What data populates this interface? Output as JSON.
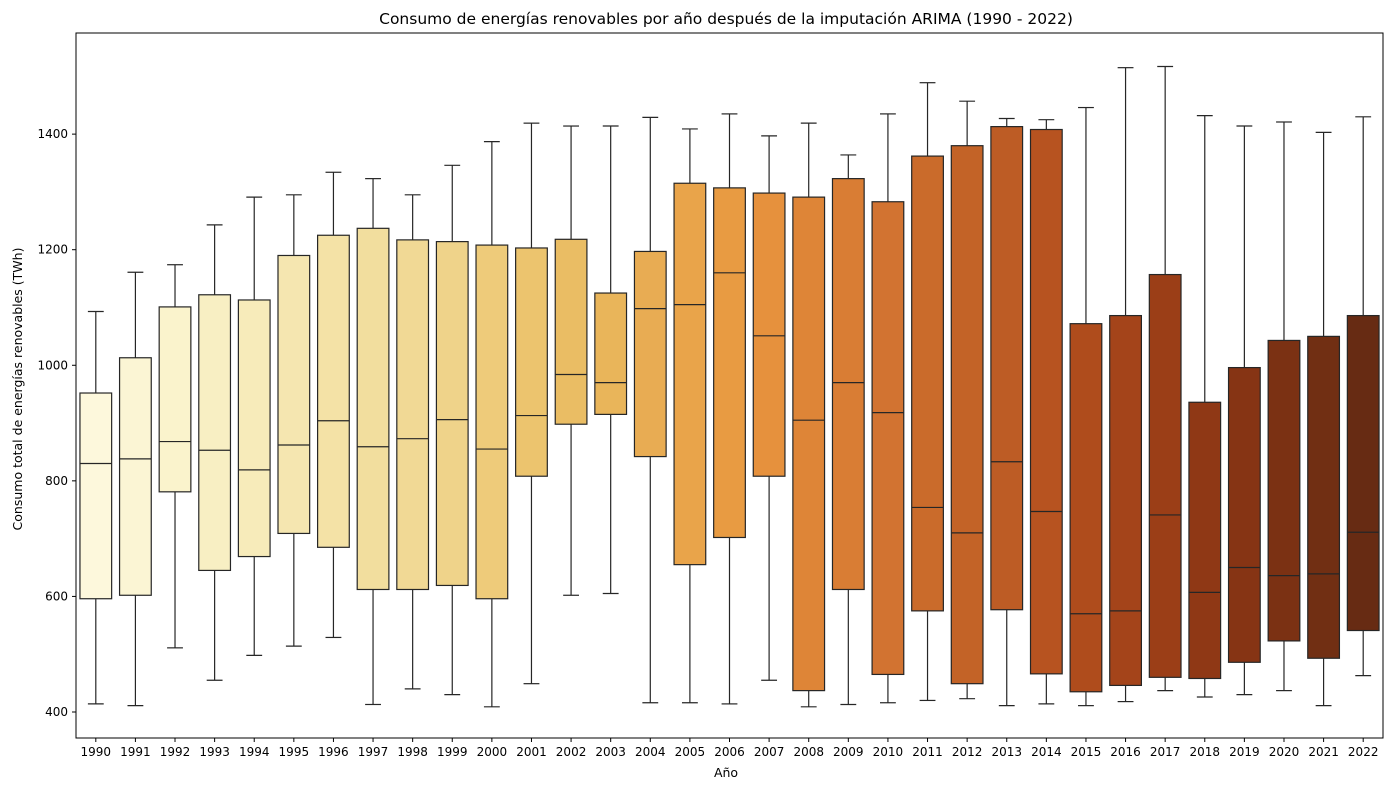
{
  "chart_data": {
    "type": "box",
    "title": "Consumo de energías renovables por año después de la imputación ARIMA (1990 - 2022)",
    "xlabel": "Año",
    "ylabel": "Consumo total de energías renovables (TWh)",
    "ylim": [
      355,
      1575
    ],
    "y_ticks": [
      400,
      600,
      800,
      1000,
      1200,
      1400
    ],
    "grid": false,
    "legend": "none",
    "box_edge_color": "#262626",
    "categories": [
      "1990",
      "1991",
      "1992",
      "1993",
      "1994",
      "1995",
      "1996",
      "1997",
      "1998",
      "1999",
      "2000",
      "2001",
      "2002",
      "2003",
      "2004",
      "2005",
      "2006",
      "2007",
      "2008",
      "2009",
      "2010",
      "2011",
      "2012",
      "2013",
      "2014",
      "2015",
      "2016",
      "2017",
      "2018",
      "2019",
      "2020",
      "2021",
      "2022"
    ],
    "boxes": [
      {
        "year": "1990",
        "min": 414,
        "q1": 596,
        "median": 830,
        "q3": 952,
        "max": 1093,
        "color": "#fdf8dc"
      },
      {
        "year": "1991",
        "min": 411,
        "q1": 602,
        "median": 838,
        "q3": 1013,
        "max": 1161,
        "color": "#fbf5d4"
      },
      {
        "year": "1992",
        "min": 511,
        "q1": 781,
        "median": 868,
        "q3": 1101,
        "max": 1174,
        "color": "#faf3cc"
      },
      {
        "year": "1993",
        "min": 455,
        "q1": 645,
        "median": 853,
        "q3": 1122,
        "max": 1243,
        "color": "#f8efc3"
      },
      {
        "year": "1994",
        "min": 498,
        "q1": 669,
        "median": 819,
        "q3": 1113,
        "max": 1291,
        "color": "#f7ebba"
      },
      {
        "year": "1995",
        "min": 514,
        "q1": 709,
        "median": 862,
        "q3": 1190,
        "max": 1295,
        "color": "#f5e6b0"
      },
      {
        "year": "1996",
        "min": 529,
        "q1": 685,
        "median": 904,
        "q3": 1225,
        "max": 1334,
        "color": "#f4e2a6"
      },
      {
        "year": "1997",
        "min": 413,
        "q1": 612,
        "median": 859,
        "q3": 1237,
        "max": 1323,
        "color": "#f2de9e"
      },
      {
        "year": "1998",
        "min": 440,
        "q1": 612,
        "median": 873,
        "q3": 1217,
        "max": 1295,
        "color": "#f1d995"
      },
      {
        "year": "1999",
        "min": 430,
        "q1": 619,
        "median": 906,
        "q3": 1214,
        "max": 1346,
        "color": "#efd38a"
      },
      {
        "year": "2000",
        "min": 409,
        "q1": 596,
        "median": 855,
        "q3": 1208,
        "max": 1387,
        "color": "#eecb7a"
      },
      {
        "year": "2001",
        "min": 449,
        "q1": 808,
        "median": 913,
        "q3": 1203,
        "max": 1419,
        "color": "#ecc46e"
      },
      {
        "year": "2002",
        "min": 602,
        "q1": 898,
        "median": 984,
        "q3": 1218,
        "max": 1414,
        "color": "#eabd64"
      },
      {
        "year": "2003",
        "min": 605,
        "q1": 915,
        "median": 970,
        "q3": 1125,
        "max": 1414,
        "color": "#e9b55a"
      },
      {
        "year": "2004",
        "min": 416,
        "q1": 842,
        "median": 1098,
        "q3": 1197,
        "max": 1429,
        "color": "#e8ac53"
      },
      {
        "year": "2005",
        "min": 416,
        "q1": 655,
        "median": 1105,
        "q3": 1315,
        "max": 1409,
        "color": "#e9a44a"
      },
      {
        "year": "2006",
        "min": 414,
        "q1": 702,
        "median": 1160,
        "q3": 1307,
        "max": 1435,
        "color": "#e89b42"
      },
      {
        "year": "2007",
        "min": 455,
        "q1": 808,
        "median": 1051,
        "q3": 1298,
        "max": 1397,
        "color": "#e6913d"
      },
      {
        "year": "2008",
        "min": 409,
        "q1": 437,
        "median": 905,
        "q3": 1291,
        "max": 1419,
        "color": "#de8537"
      },
      {
        "year": "2009",
        "min": 413,
        "q1": 612,
        "median": 970,
        "q3": 1323,
        "max": 1364,
        "color": "#d97d34"
      },
      {
        "year": "2010",
        "min": 416,
        "q1": 465,
        "median": 918,
        "q3": 1283,
        "max": 1435,
        "color": "#d27331"
      },
      {
        "year": "2011",
        "min": 420,
        "q1": 575,
        "median": 754,
        "q3": 1362,
        "max": 1489,
        "color": "#ca6b2b"
      },
      {
        "year": "2012",
        "min": 423,
        "q1": 449,
        "median": 710,
        "q3": 1380,
        "max": 1457,
        "color": "#c36327"
      },
      {
        "year": "2013",
        "min": 411,
        "q1": 577,
        "median": 833,
        "q3": 1413,
        "max": 1427,
        "color": "#bd5c25"
      },
      {
        "year": "2014",
        "min": 414,
        "q1": 466,
        "median": 747,
        "q3": 1408,
        "max": 1425,
        "color": "#b75320"
      },
      {
        "year": "2015",
        "min": 411,
        "q1": 435,
        "median": 570,
        "q3": 1072,
        "max": 1446,
        "color": "#af4c1c"
      },
      {
        "year": "2016",
        "min": 418,
        "q1": 446,
        "median": 575,
        "q3": 1086,
        "max": 1515,
        "color": "#a4441a"
      },
      {
        "year": "2017",
        "min": 437,
        "q1": 460,
        "median": 741,
        "q3": 1157,
        "max": 1517,
        "color": "#9b3e17"
      },
      {
        "year": "2018",
        "min": 426,
        "q1": 458,
        "median": 607,
        "q3": 936,
        "max": 1432,
        "color": "#8f3815"
      },
      {
        "year": "2019",
        "min": 430,
        "q1": 486,
        "median": 650,
        "q3": 996,
        "max": 1414,
        "color": "#863414"
      },
      {
        "year": "2020",
        "min": 437,
        "q1": 523,
        "median": 636,
        "q3": 1043,
        "max": 1421,
        "color": "#7b3113"
      },
      {
        "year": "2021",
        "min": 411,
        "q1": 493,
        "median": 639,
        "q3": 1050,
        "max": 1403,
        "color": "#712f13"
      },
      {
        "year": "2022",
        "min": 463,
        "q1": 541,
        "median": 711,
        "q3": 1086,
        "max": 1430,
        "color": "#672b13"
      }
    ]
  }
}
